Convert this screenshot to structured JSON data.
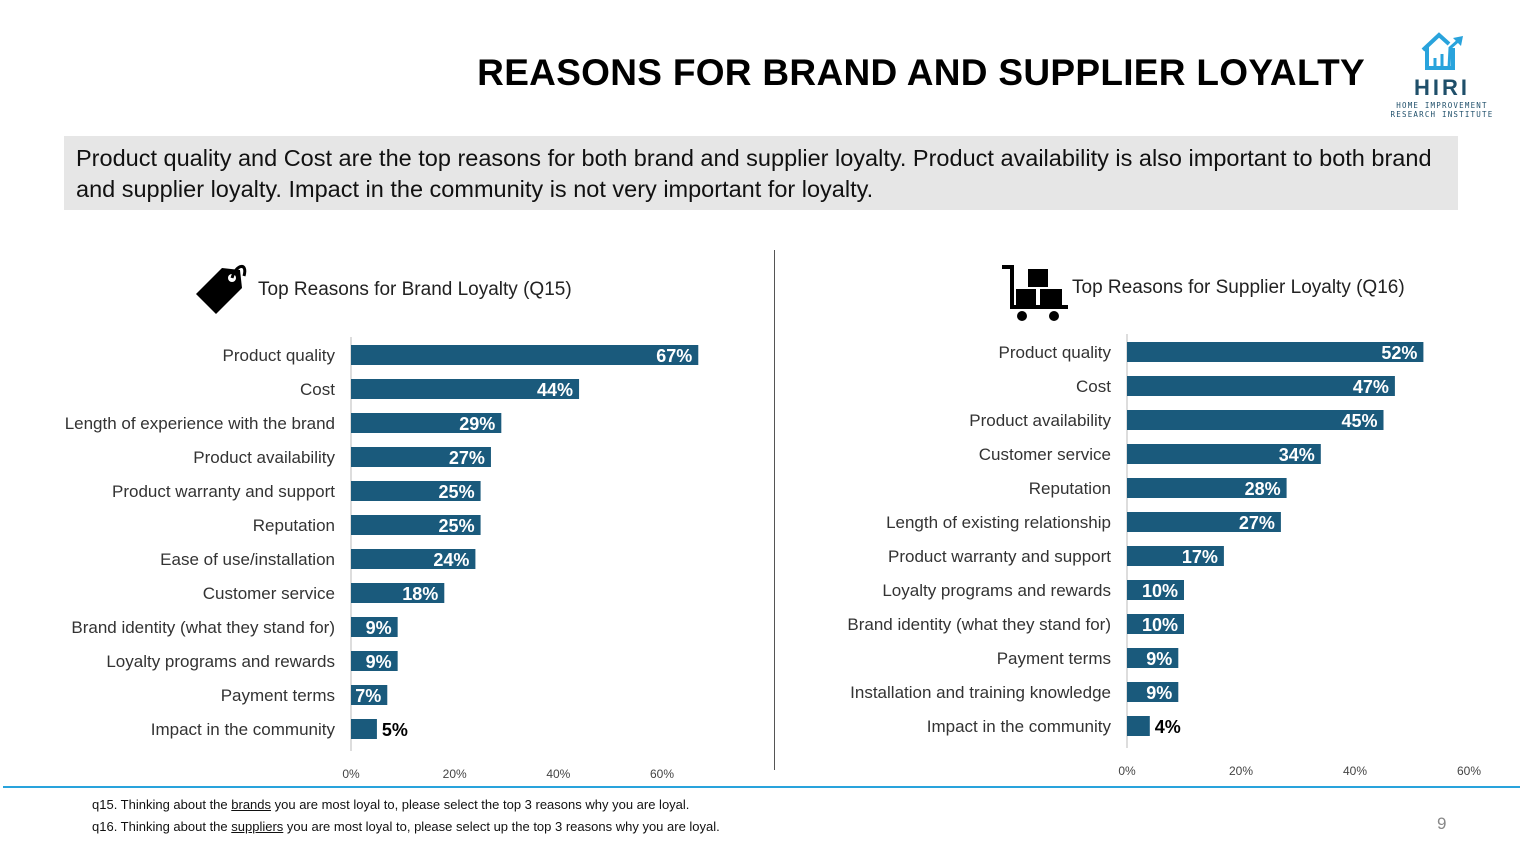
{
  "title": "REASONS FOR BRAND AND SUPPLIER LOYALTY",
  "summary": "Product quality and Cost are the top reasons for both brand and supplier loyalty. Product availability is also important to both brand and supplier loyalty. Impact in the community is not very important for loyalty.",
  "logo": {
    "name": "HIRI",
    "subtitle_1": "HOME IMPROVEMENT",
    "subtitle_2": "RESEARCH INSTITUTE"
  },
  "colors": {
    "bar": "#1a5a7c",
    "accent_line": "#29a3dc"
  },
  "chart_data": [
    {
      "type": "bar",
      "orientation": "horizontal",
      "title": "Top Reasons for Brand Loyalty (Q15)",
      "icon": "price-tag-icon",
      "categories": [
        "Product quality",
        "Cost",
        "Length of experience with the brand",
        "Product availability",
        "Product warranty and support",
        "Reputation",
        "Ease of use/installation",
        "Customer service",
        "Brand identity (what they stand for)",
        "Loyalty programs and rewards",
        "Payment terms",
        "Impact in the community"
      ],
      "values": [
        67,
        44,
        29,
        27,
        25,
        25,
        24,
        18,
        9,
        9,
        7,
        5
      ],
      "data_labels": [
        "67%",
        "44%",
        "29%",
        "27%",
        "25%",
        "25%",
        "24%",
        "18%",
        "9%",
        "9%",
        "7%",
        "5%"
      ],
      "xlim": [
        0,
        60
      ],
      "xticks": [
        "0%",
        "20%",
        "40%",
        "60%"
      ],
      "grid": false
    },
    {
      "type": "bar",
      "orientation": "horizontal",
      "title": "Top Reasons for Supplier Loyalty (Q16)",
      "icon": "cart-icon",
      "categories": [
        "Product quality",
        "Cost",
        "Product availability",
        "Customer service",
        "Reputation",
        "Length of existing relationship",
        "Product warranty and support",
        "Loyalty programs and rewards",
        "Brand identity (what they stand for)",
        "Payment terms",
        "Installation and training knowledge",
        "Impact in the community"
      ],
      "values": [
        52,
        47,
        45,
        34,
        28,
        27,
        17,
        10,
        10,
        9,
        9,
        4
      ],
      "data_labels": [
        "52%",
        "47%",
        "45%",
        "34%",
        "28%",
        "27%",
        "17%",
        "10%",
        "10%",
        "9%",
        "9%",
        "4%"
      ],
      "xlim": [
        0,
        60
      ],
      "xticks": [
        "0%",
        "20%",
        "40%",
        "60%"
      ],
      "grid": false
    }
  ],
  "footnotes": [
    {
      "pre": "q15. Thinking about the ",
      "u": "brands",
      "post": " you are most loyal to, please select the top 3 reasons why you are loyal."
    },
    {
      "pre": "q16. Thinking about the ",
      "u": "suppliers",
      "post": " you are most loyal to, please select up the top 3 reasons why you are loyal."
    }
  ],
  "page_number": "9"
}
